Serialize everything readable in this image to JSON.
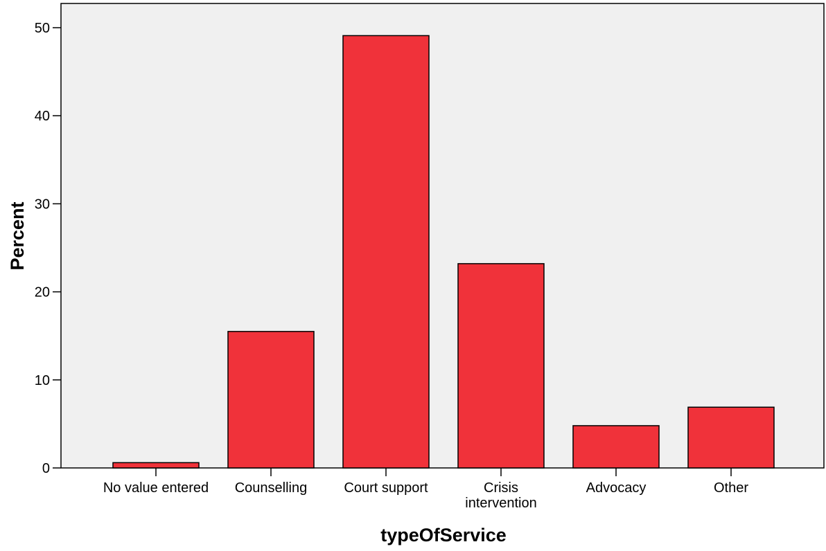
{
  "chart_data": {
    "type": "bar",
    "title": "",
    "xlabel": "typeOfService",
    "ylabel": "Percent",
    "categories": [
      "No value entered",
      "Counselling",
      "Court support",
      "Crisis intervention",
      "Advocacy",
      "Other"
    ],
    "category_lines": [
      [
        "No value entered"
      ],
      [
        "Counselling"
      ],
      [
        "Court support"
      ],
      [
        "Crisis",
        "intervention"
      ],
      [
        "Advocacy"
      ],
      [
        "Other"
      ]
    ],
    "values": [
      0.6,
      15.5,
      49.1,
      23.2,
      4.8,
      6.9
    ],
    "ylim": [
      0,
      50
    ],
    "yticks": [
      0,
      10,
      20,
      30,
      40,
      50
    ],
    "grid": false,
    "colors": {
      "bar": "#f0323a",
      "plot_background": "#f0f0f0",
      "outline": "#000000"
    }
  }
}
